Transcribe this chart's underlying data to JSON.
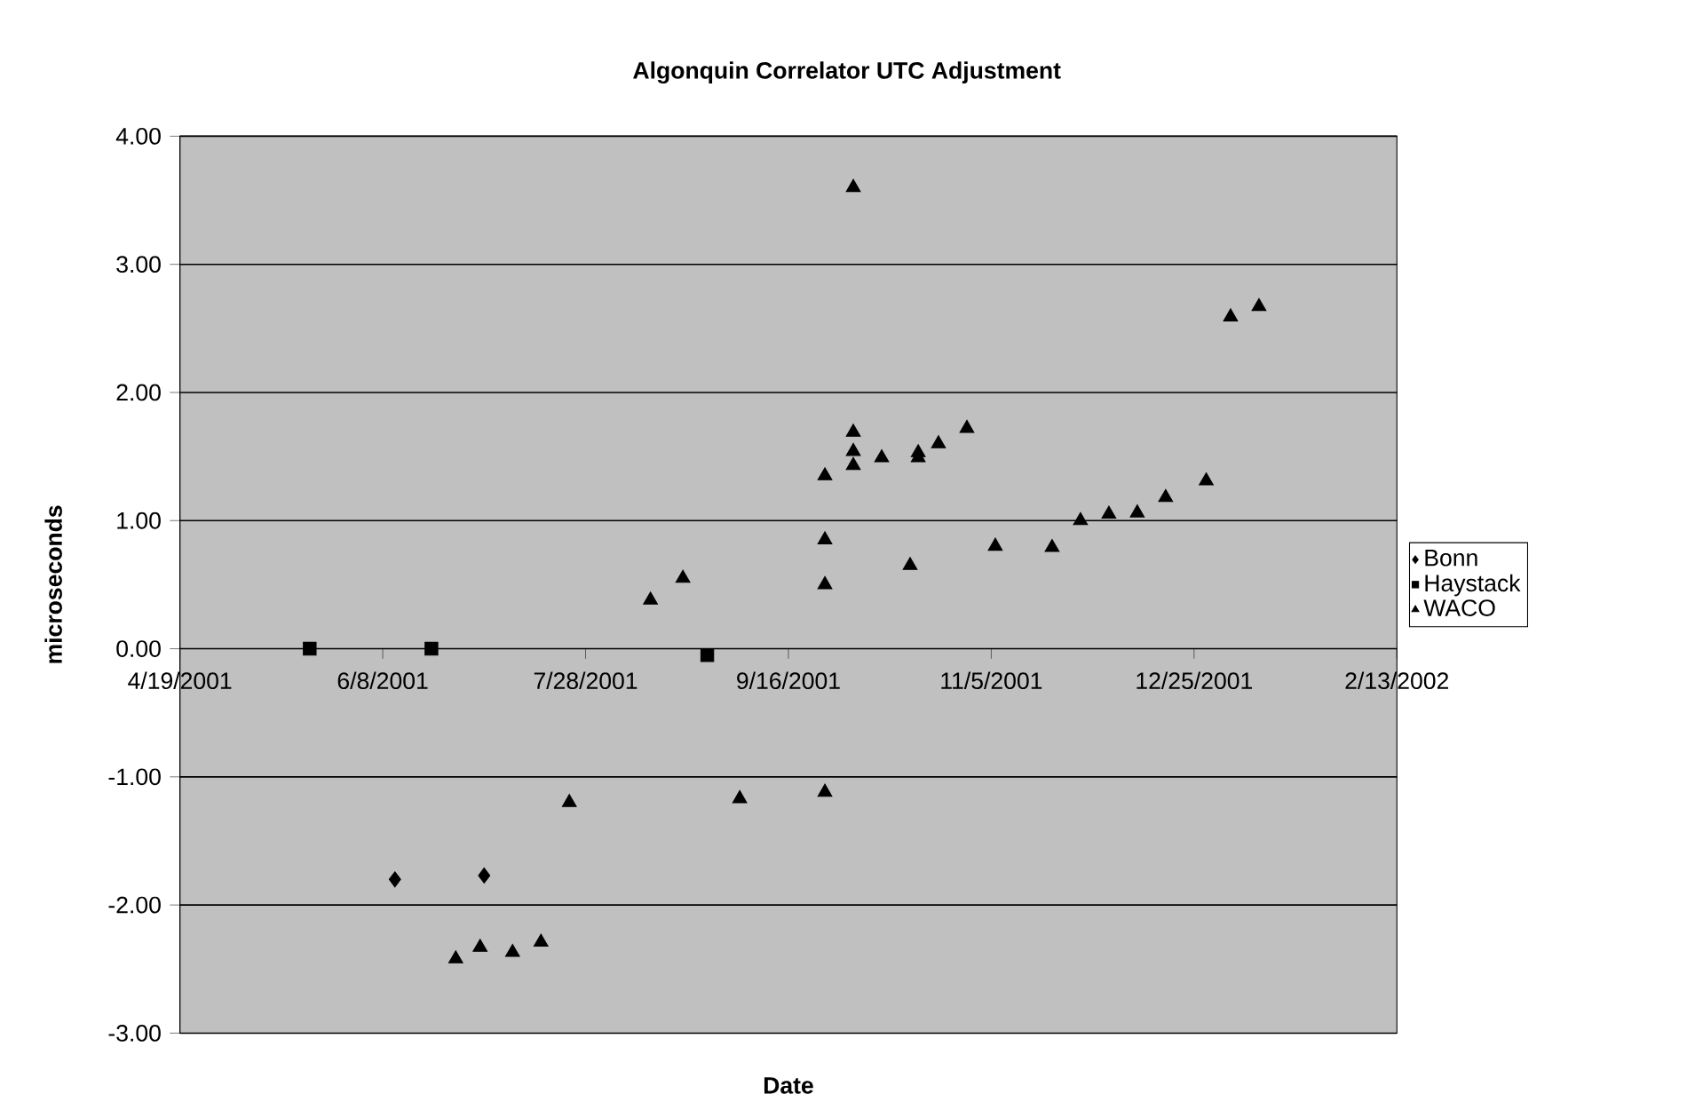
{
  "chart_data": {
    "type": "scatter",
    "title": "**Algonquin Correlator UTC Adjustment**",
    "xlabel": "**Date**",
    "ylabel": "**microseconds**",
    "xlim": [
      "2001-04-19",
      "2002-02-13"
    ],
    "xticks": [
      {
        "value": "2001-04-19",
        "label": "4/19/2001"
      },
      {
        "value": "2001-06-08",
        "label": "6/8/2001"
      },
      {
        "value": "2001-07-28",
        "label": "7/28/2001"
      },
      {
        "value": "2001-09-16",
        "label": "9/16/2001"
      },
      {
        "value": "2001-11-05",
        "label": "11/5/2001"
      },
      {
        "value": "2001-12-25",
        "label": "12/25/2001"
      },
      {
        "value": "2002-02-13",
        "label": "2/13/2002"
      }
    ],
    "ylim": [
      -3,
      4
    ],
    "yticks": [
      {
        "value": -3,
        "label": "-3.00"
      },
      {
        "value": -2,
        "label": "-2.00"
      },
      {
        "value": -1,
        "label": "-1.00"
      },
      {
        "value": 0,
        "label": "0.00"
      },
      {
        "value": 1,
        "label": "1.00"
      },
      {
        "value": 2,
        "label": "2.00"
      },
      {
        "value": 3,
        "label": "3.00"
      },
      {
        "value": 4,
        "label": "4.00"
      }
    ],
    "grid": "y",
    "legend": "right",
    "series": [
      {
        "name": "Bonn",
        "color": "#000000",
        "marker": "diamond",
        "x": [
          "2001-06-11",
          "2001-07-03"
        ],
        "values": [
          -1.8,
          -1.77
        ]
      },
      {
        "name": "Haystack",
        "color": "#000000",
        "marker": "square",
        "x": [
          "2001-05-21",
          "2001-06-20",
          "2001-08-27"
        ],
        "values": [
          0.0,
          0.0,
          -0.05
        ]
      },
      {
        "name": "WACO",
        "color": "#000000",
        "marker": "triangle",
        "x": [
          "2001-06-26",
          "2001-07-02",
          "2001-07-10",
          "2001-07-17",
          "2001-07-24",
          "2001-08-13",
          "2001-08-21",
          "2001-09-04",
          "2001-09-25",
          "2001-09-25",
          "2001-09-25",
          "2001-09-25",
          "2001-10-02",
          "2001-10-02",
          "2001-10-02",
          "2001-10-02",
          "2001-10-09",
          "2001-10-16",
          "2001-10-18",
          "2001-10-18",
          "2001-10-23",
          "2001-10-30",
          "2001-11-06",
          "2001-11-20",
          "2001-11-27",
          "2001-12-04",
          "2001-12-11",
          "2001-12-18",
          "2001-12-28",
          "2002-01-03",
          "2002-01-10"
        ],
        "values": [
          -2.42,
          -2.33,
          -2.37,
          -2.29,
          -1.2,
          0.38,
          0.55,
          -1.17,
          -1.12,
          0.5,
          0.85,
          1.35,
          3.6,
          1.69,
          1.54,
          1.43,
          1.49,
          0.65,
          1.49,
          1.53,
          1.6,
          1.72,
          0.8,
          0.79,
          1.0,
          1.05,
          1.06,
          1.18,
          1.31,
          2.59,
          2.67
        ]
      }
    ]
  }
}
